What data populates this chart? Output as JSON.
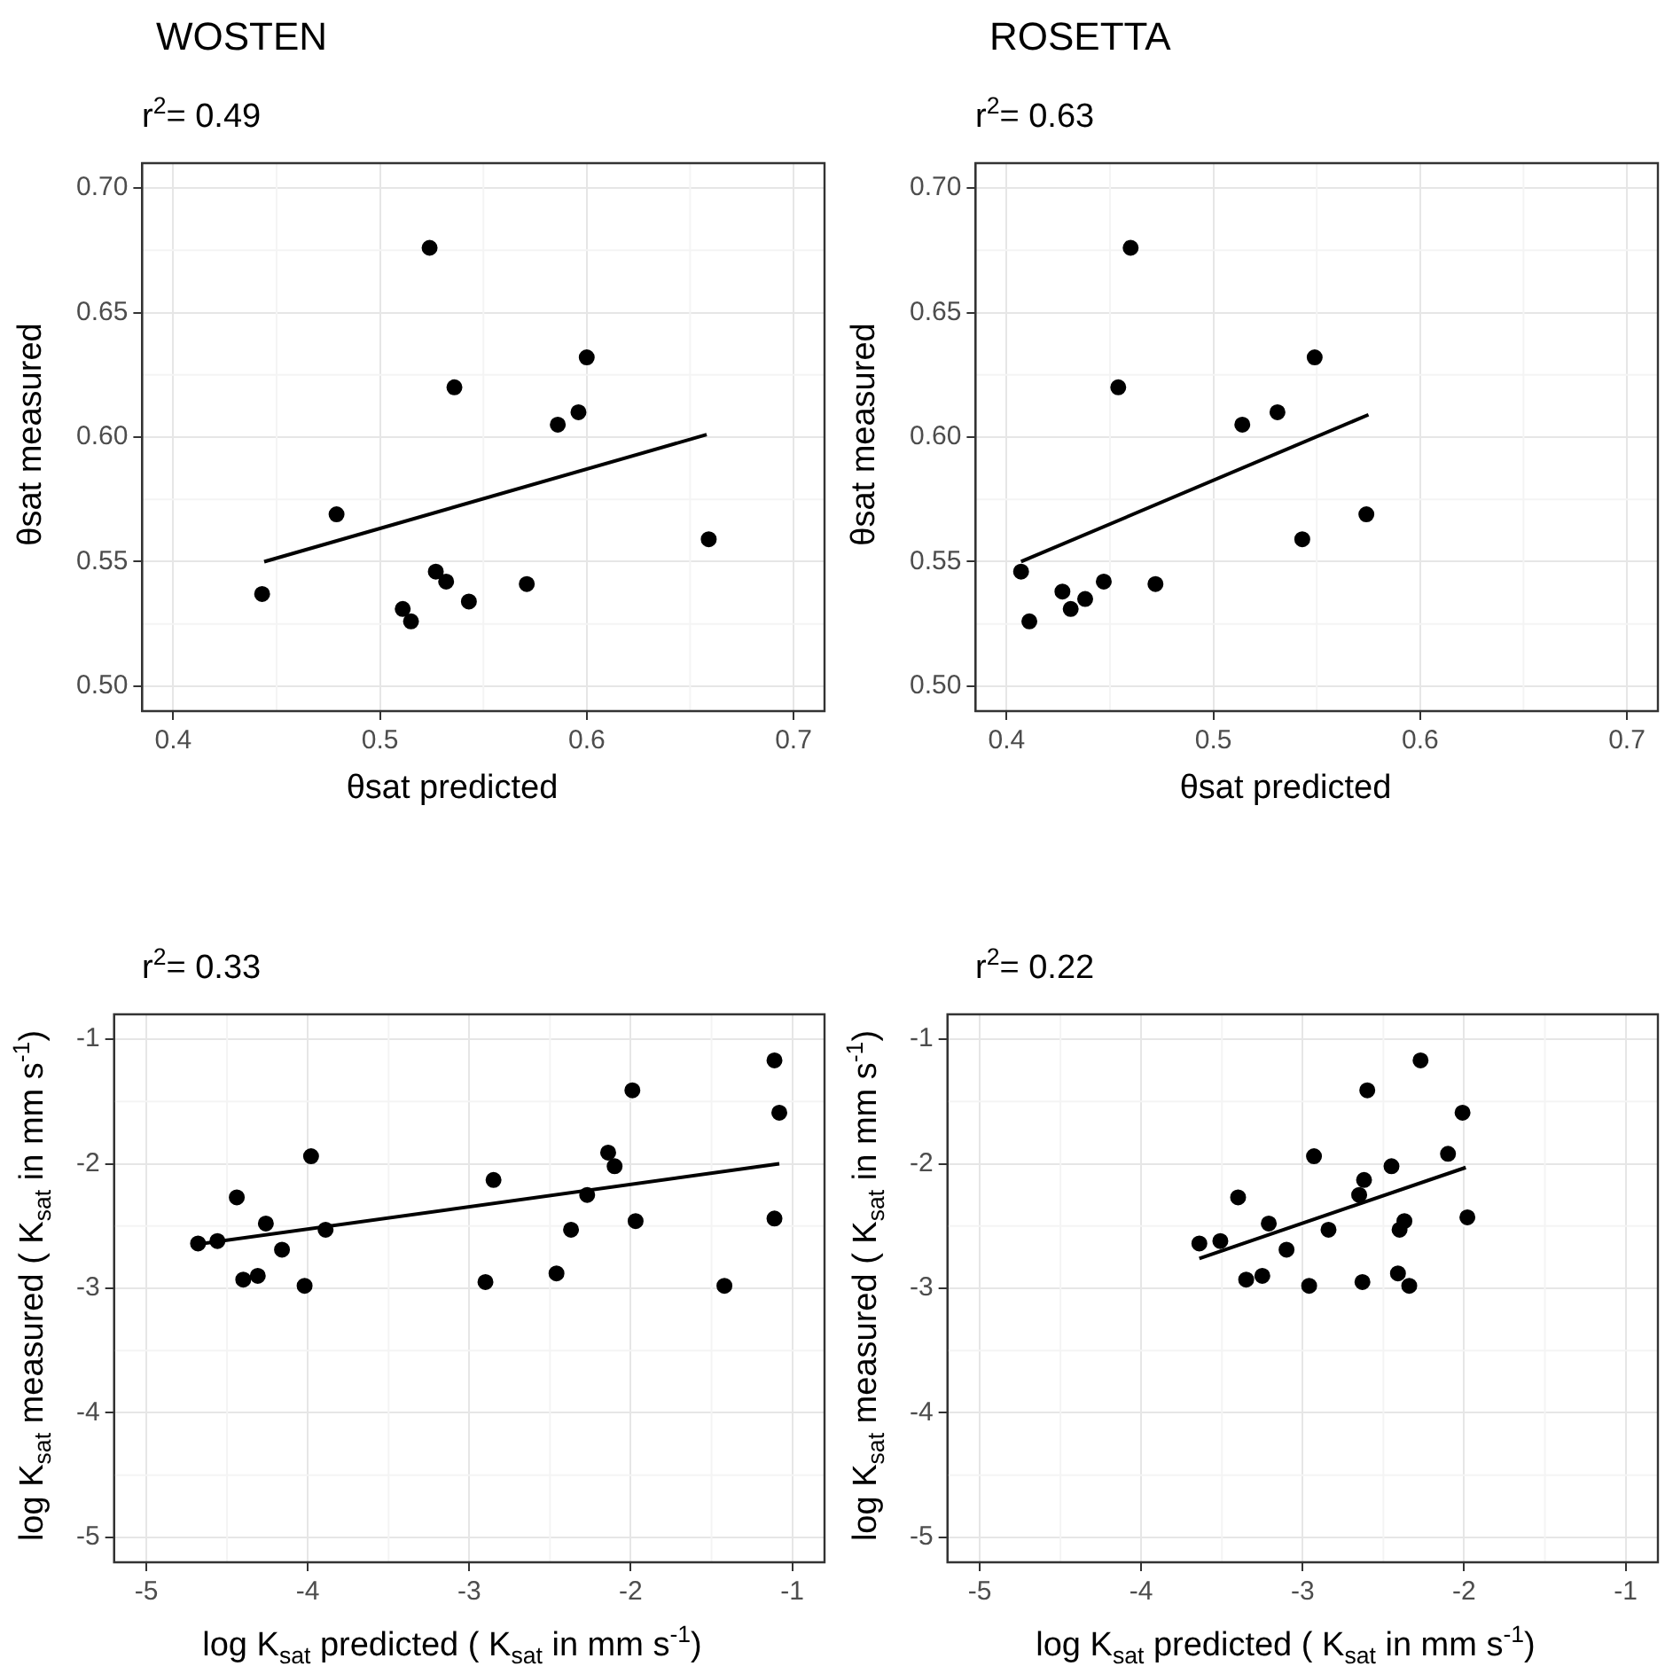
{
  "chart_data": [
    {
      "type": "scatter",
      "title": "WOSTEN",
      "subtitle": "r$^{2}$= 0.49",
      "xlabel": "θsat predicted",
      "ylabel": "θsat measured",
      "xlim": [
        0.385,
        0.715
      ],
      "ylim": [
        0.49,
        0.71
      ],
      "xticks": [
        0.4,
        0.5,
        0.6,
        0.7
      ],
      "yticks": [
        {
          "value": 0.5,
          "label": "0.50"
        },
        {
          "value": 0.55,
          "label": "0.55"
        },
        {
          "value": 0.6,
          "label": "0.60"
        },
        {
          "value": 0.65,
          "label": "0.65"
        },
        {
          "value": 0.7,
          "label": "0.70"
        }
      ],
      "grid": true,
      "legend": false,
      "series": [
        {
          "marker": "circle",
          "color": "#000000",
          "x": [
            0.524,
            0.6,
            0.536,
            0.586,
            0.596,
            0.479,
            0.659,
            0.443,
            0.527,
            0.532,
            0.571,
            0.543,
            0.511,
            0.515
          ],
          "values": [
            0.676,
            0.632,
            0.62,
            0.605,
            0.61,
            0.569,
            0.559,
            0.537,
            0.546,
            0.542,
            0.541,
            0.534,
            0.531,
            0.526
          ]
        },
        {
          "type": "line",
          "marker": "none",
          "color": "#000000",
          "x": [
            0.444,
            0.658
          ],
          "values": [
            0.55,
            0.601
          ]
        }
      ]
    },
    {
      "type": "scatter",
      "title": "ROSETTA",
      "subtitle": "r$^{2}$= 0.63",
      "xlabel": "θsat predicted",
      "ylabel": "θsat measured",
      "xlim": [
        0.385,
        0.715
      ],
      "ylim": [
        0.49,
        0.71
      ],
      "xticks": [
        0.4,
        0.5,
        0.6,
        0.7
      ],
      "yticks": [
        {
          "value": 0.5,
          "label": "0.50"
        },
        {
          "value": 0.55,
          "label": "0.55"
        },
        {
          "value": 0.6,
          "label": "0.60"
        },
        {
          "value": 0.65,
          "label": "0.65"
        },
        {
          "value": 0.7,
          "label": "0.70"
        }
      ],
      "grid": true,
      "legend": false,
      "series": [
        {
          "marker": "circle",
          "color": "#000000",
          "x": [
            0.46,
            0.454,
            0.549,
            0.514,
            0.531,
            0.574,
            0.543,
            0.407,
            0.411,
            0.427,
            0.431,
            0.438,
            0.447,
            0.472
          ],
          "values": [
            0.676,
            0.62,
            0.632,
            0.605,
            0.61,
            0.569,
            0.559,
            0.546,
            0.526,
            0.538,
            0.531,
            0.535,
            0.542,
            0.541
          ]
        },
        {
          "type": "line",
          "marker": "none",
          "color": "#000000",
          "x": [
            0.407,
            0.575
          ],
          "values": [
            0.55,
            0.609
          ]
        }
      ]
    },
    {
      "type": "scatter",
      "subtitle": "r$^{2}$= 0.33",
      "xlabel": "log K$_{sat}$ predicted ( K$_{sat}$ in mm s$^{-1}$)",
      "ylabel": "log K$_{sat}$ measured ( K$_{sat}$ in mm s$^{-1}$)",
      "xlim": [
        -5.2,
        -0.8
      ],
      "ylim": [
        -5.2,
        -0.8
      ],
      "xticks": [
        -5,
        -4,
        -3,
        -2,
        -1
      ],
      "yticks": [
        -5,
        -4,
        -3,
        -2,
        -1
      ],
      "grid": true,
      "legend": false,
      "series": [
        {
          "marker": "circle",
          "color": "#000000",
          "x": [
            -1.11,
            -1.99,
            -1.08,
            -3.98,
            -2.14,
            -2.1,
            -2.85,
            -4.44,
            -2.27,
            -4.26,
            -1.97,
            -1.11,
            -2.37,
            -3.89,
            -4.68,
            -4.56,
            -4.16,
            -4.4,
            -4.31,
            -4.02,
            -2.9,
            -2.46,
            -1.42
          ],
          "values": [
            -1.17,
            -1.41,
            -1.59,
            -1.94,
            -1.91,
            -2.02,
            -2.13,
            -2.27,
            -2.25,
            -2.48,
            -2.46,
            -2.44,
            -2.53,
            -2.53,
            -2.64,
            -2.62,
            -2.69,
            -2.93,
            -2.9,
            -2.98,
            -2.95,
            -2.88,
            -2.98
          ]
        },
        {
          "type": "line",
          "marker": "none",
          "color": "#000000",
          "x": [
            -4.7,
            -1.08
          ],
          "values": [
            -2.65,
            -2.0
          ]
        }
      ]
    },
    {
      "type": "scatter",
      "subtitle": "r$^{2}$= 0.22",
      "xlabel": "log K$_{sat}$ predicted ( K$_{sat}$ in mm s$^{-1}$)",
      "ylabel": "log K$_{sat}$ measured ( K$_{sat}$ in mm s$^{-1}$)",
      "xlim": [
        -5.2,
        -0.8
      ],
      "ylim": [
        -5.2,
        -0.8
      ],
      "xticks": [
        -5,
        -4,
        -3,
        -2,
        -1
      ],
      "yticks": [
        -5,
        -4,
        -3,
        -2,
        -1
      ],
      "grid": true,
      "legend": false,
      "series": [
        {
          "marker": "circle",
          "color": "#000000",
          "x": [
            -2.27,
            -2.6,
            -2.01,
            -2.93,
            -2.1,
            -2.45,
            -2.62,
            -3.4,
            -2.65,
            -3.21,
            -1.98,
            -2.37,
            -2.4,
            -2.84,
            -3.64,
            -3.51,
            -3.1,
            -3.35,
            -3.25,
            -2.96,
            -2.63,
            -2.41,
            -2.34
          ],
          "values": [
            -1.17,
            -1.41,
            -1.59,
            -1.94,
            -1.92,
            -2.02,
            -2.13,
            -2.27,
            -2.25,
            -2.48,
            -2.43,
            -2.46,
            -2.53,
            -2.53,
            -2.64,
            -2.62,
            -2.69,
            -2.93,
            -2.9,
            -2.98,
            -2.95,
            -2.88,
            -2.98
          ]
        },
        {
          "type": "line",
          "marker": "none",
          "color": "#000000",
          "x": [
            -3.64,
            -1.99
          ],
          "values": [
            -2.76,
            -2.03
          ]
        }
      ]
    }
  ]
}
